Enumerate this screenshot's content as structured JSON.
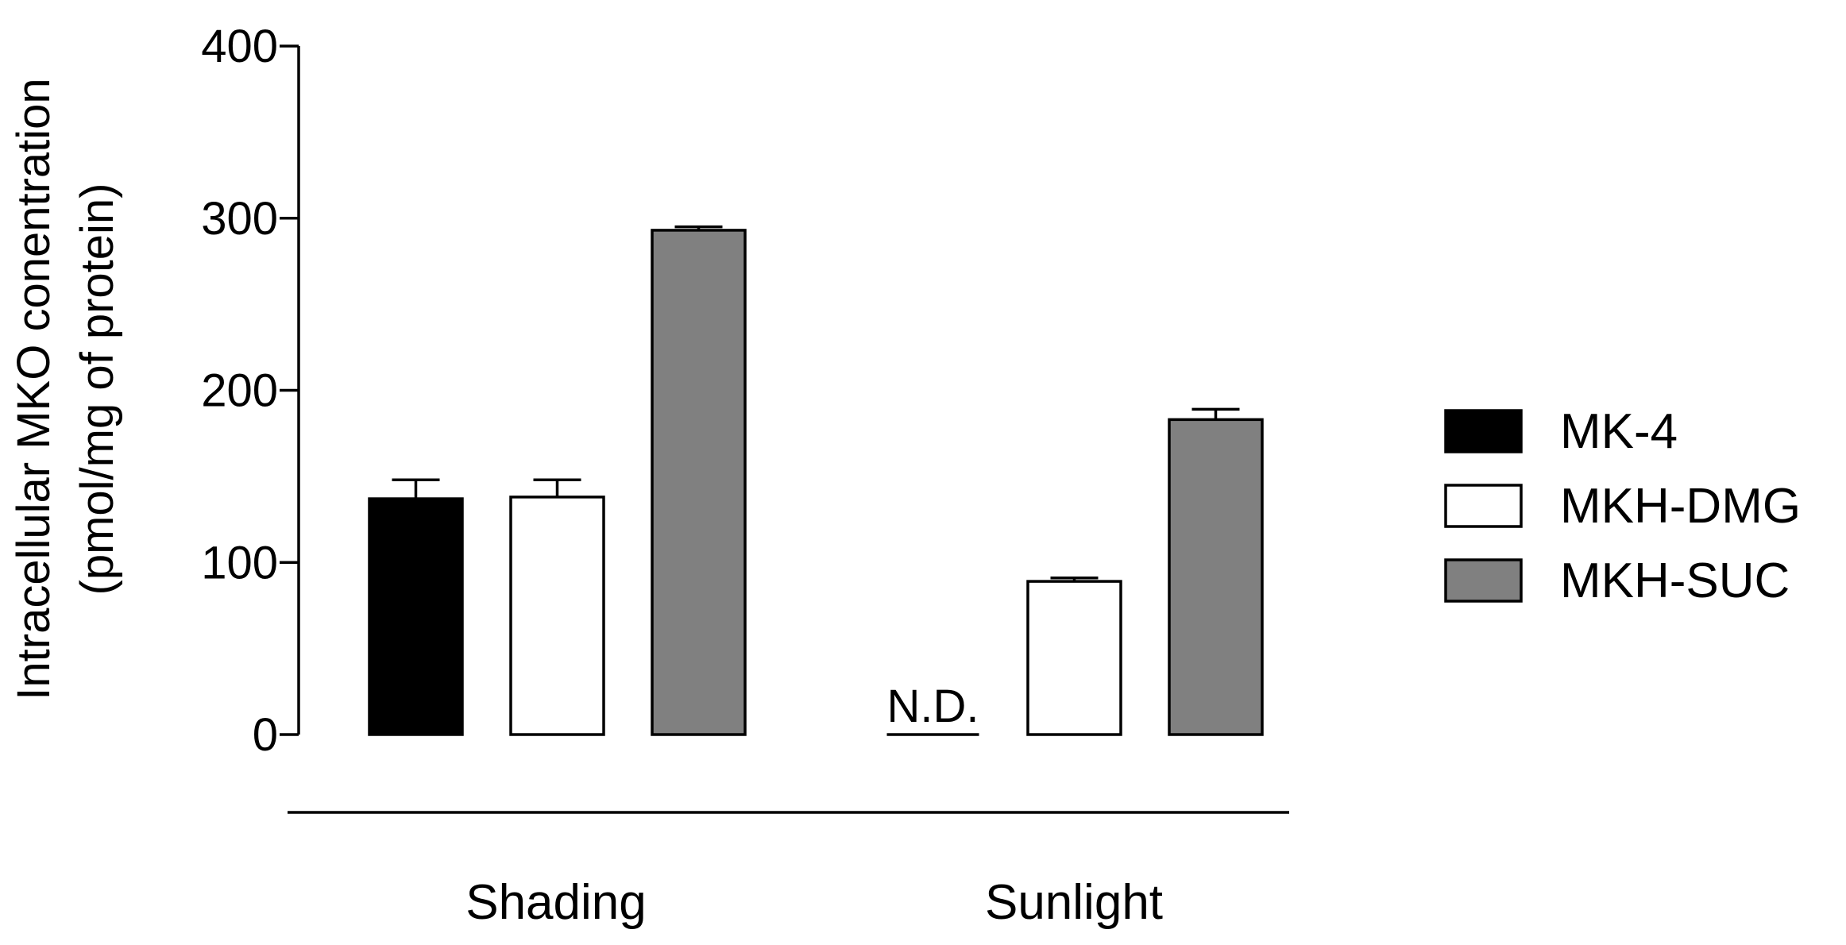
{
  "chart_data": {
    "type": "bar",
    "title": "",
    "ylabel_line1": "Intracellular MKO conentration",
    "ylabel_line2": "(pmol/mg of protein)",
    "xlabel": "",
    "ylim": [
      0,
      400
    ],
    "yticks": [
      0,
      100,
      200,
      300,
      400
    ],
    "categories": [
      "Shading",
      "Sunlight"
    ],
    "series": [
      {
        "name": "MK-4",
        "color": "#000000",
        "values": [
          137,
          null
        ],
        "errors": [
          11,
          null
        ]
      },
      {
        "name": "MKH-DMG",
        "color": "#ffffff",
        "values": [
          138,
          89
        ],
        "errors": [
          10,
          2
        ]
      },
      {
        "name": "MKH-SUC",
        "color": "#808080",
        "values": [
          293,
          183
        ],
        "errors": [
          2,
          6
        ]
      }
    ],
    "annotations": [
      {
        "text": "N.D.",
        "category": "Sunlight",
        "series": "MK-4"
      }
    ],
    "legend_position": "right"
  }
}
